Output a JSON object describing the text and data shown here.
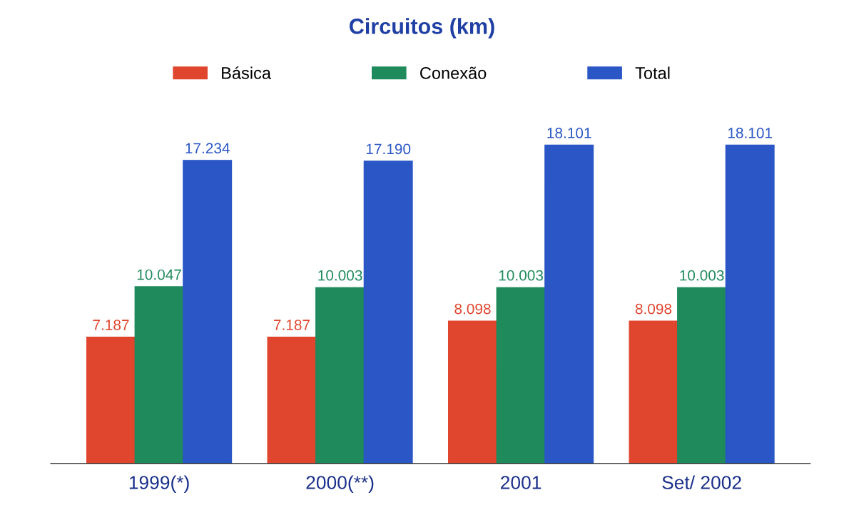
{
  "chart_data": {
    "type": "bar",
    "title": "Circuitos (km)",
    "categories": [
      "1999(*)",
      "2000(**)",
      "2001",
      "Set/ 2002"
    ],
    "series": [
      {
        "name": "Básica",
        "color": "#e0452e",
        "values": [
          7187,
          7187,
          8098,
          8098
        ],
        "value_labels": [
          "7.187",
          "7.187",
          "8.098",
          "8.098"
        ]
      },
      {
        "name": "Conexão",
        "color": "#1f8a5c",
        "values": [
          10047,
          10003,
          10003,
          10003
        ],
        "value_labels": [
          "10.047",
          "10.003",
          "10.003",
          "10.003"
        ]
      },
      {
        "name": "Total",
        "color": "#2a56c6",
        "values": [
          17234,
          17190,
          18101,
          18101
        ],
        "value_labels": [
          "17.234",
          "17.190",
          "18.101",
          "18.101"
        ]
      }
    ],
    "legend": "top",
    "grid": false
  }
}
